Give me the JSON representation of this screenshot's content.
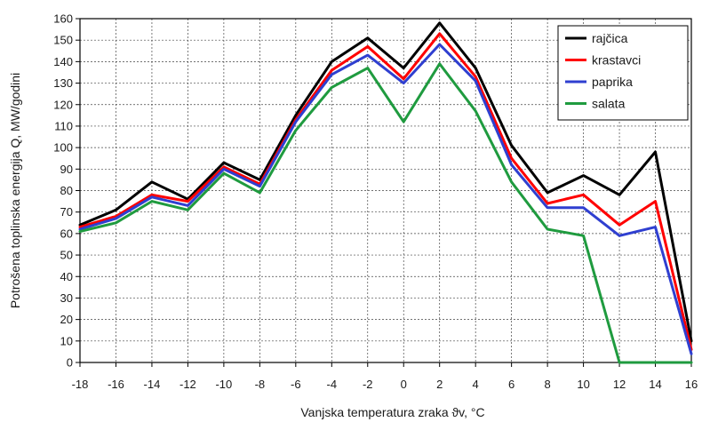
{
  "chart_data": {
    "type": "line",
    "title": "",
    "xlabel": "Vanjska temperatura zraka ϑv, °C",
    "ylabel": "Potrošena toplinska energija Q, MW/godini",
    "xlim": [
      -18,
      16
    ],
    "ylim": [
      0,
      160
    ],
    "x_ticks": [
      -18,
      -16,
      -14,
      -12,
      -10,
      -8,
      -6,
      -4,
      -2,
      0,
      2,
      4,
      6,
      8,
      10,
      12,
      14,
      16
    ],
    "y_ticks": [
      0,
      10,
      20,
      30,
      40,
      50,
      60,
      70,
      80,
      90,
      100,
      110,
      120,
      130,
      140,
      150,
      160
    ],
    "grid": true,
    "legend_position": "top-right",
    "x": [
      -18,
      -16,
      -14,
      -12,
      -10,
      -8,
      -6,
      -4,
      -2,
      0,
      2,
      4,
      6,
      8,
      10,
      12,
      14,
      16
    ],
    "series": [
      {
        "name": "rajčica",
        "color": "#000000",
        "values": [
          64,
          71,
          84,
          76,
          93,
          85,
          115,
          140,
          151,
          137,
          158,
          137,
          101,
          79,
          87,
          78,
          98,
          10
        ]
      },
      {
        "name": "krastavci",
        "color": "#ff0000",
        "values": [
          63,
          68,
          78,
          75,
          91,
          83,
          113,
          136,
          147,
          132,
          153,
          133,
          95,
          74,
          78,
          64,
          75,
          6
        ]
      },
      {
        "name": "paprika",
        "color": "#2f3fd0",
        "values": [
          62,
          67,
          77,
          73,
          90,
          82,
          112,
          134,
          143,
          130,
          148,
          131,
          92,
          72,
          72,
          59,
          63,
          4
        ]
      },
      {
        "name": "salata",
        "color": "#1f9b3f",
        "values": [
          61,
          65,
          75,
          71,
          88,
          79,
          108,
          128,
          137,
          112,
          139,
          117,
          84,
          62,
          59,
          0,
          0,
          0
        ]
      }
    ]
  }
}
